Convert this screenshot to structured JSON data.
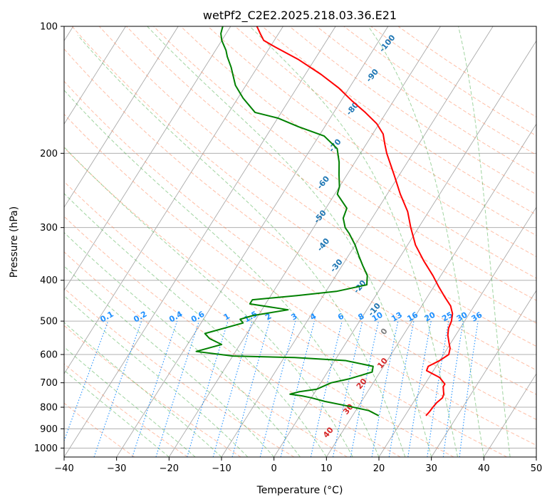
{
  "chart_data": {
    "type": "line",
    "title": "wetPf2_C2E2.2025.218.03.36.E21",
    "xlabel": "Temperature (°C)",
    "ylabel": "Pressure (hPa)",
    "xlim": [
      -40,
      50
    ],
    "ylim": [
      1050,
      100
    ],
    "y_scale": "log",
    "skew_t": true,
    "x_ticks": [
      -40,
      -30,
      -20,
      -10,
      0,
      10,
      20,
      30,
      40,
      50
    ],
    "y_ticks": [
      100,
      200,
      300,
      400,
      500,
      600,
      700,
      800,
      900,
      1000
    ],
    "grid": true,
    "colors": {
      "temperature": "#ff0000",
      "dewpoint": "#008000",
      "isotherm_label": "#1f77b4",
      "dry_adiabat": "#ff7f50",
      "moist_adiabat": "#2ca02c",
      "mixing_ratio": "#1e90ff",
      "saturation_label": "#d62728",
      "freezing_label": "#808080"
    },
    "isotherm_labels": [
      "-100",
      "-90",
      "-80",
      "-70",
      "-60",
      "-50",
      "-40",
      "-30",
      "-20",
      "-10",
      "0",
      "10",
      "20",
      "30",
      "40"
    ],
    "mixing_ratio_labels": [
      "0.1",
      "0.2",
      "0.4",
      "0.6",
      "1",
      "1.5",
      "2",
      "3",
      "4",
      "6",
      "8",
      "10",
      "13",
      "16",
      "20",
      "25",
      "30",
      "36"
    ],
    "series": [
      {
        "key": "temperature",
        "points": [
          [
            24,
            838
          ],
          [
            24.2,
            820
          ],
          [
            24.3,
            800
          ],
          [
            24.5,
            780
          ],
          [
            25,
            760
          ],
          [
            24.8,
            745
          ],
          [
            24.3,
            730
          ],
          [
            23.8,
            715
          ],
          [
            23.8,
            705
          ],
          [
            22,
            680
          ],
          [
            18.7,
            655
          ],
          [
            18.5,
            640
          ],
          [
            20,
            620
          ],
          [
            21,
            600
          ],
          [
            20.5,
            580
          ],
          [
            19.5,
            560
          ],
          [
            18.5,
            540
          ],
          [
            17.8,
            520
          ],
          [
            17.5,
            500
          ],
          [
            16.8,
            480
          ],
          [
            15.5,
            460
          ],
          [
            13.5,
            440
          ],
          [
            11,
            415
          ],
          [
            8.5,
            390
          ],
          [
            5,
            360
          ],
          [
            1.5,
            330
          ],
          [
            -1.5,
            300
          ],
          [
            -4,
            275
          ],
          [
            -7.5,
            250
          ],
          [
            -11,
            225
          ],
          [
            -15,
            200
          ],
          [
            -16.5,
            190
          ],
          [
            -18,
            180
          ],
          [
            -20.5,
            170
          ],
          [
            -24,
            160
          ],
          [
            -28,
            150
          ],
          [
            -32,
            140
          ],
          [
            -37,
            130
          ],
          [
            -43,
            120
          ],
          [
            -49,
            112
          ],
          [
            -52,
            108
          ],
          [
            -53.5,
            104
          ],
          [
            -55,
            100
          ]
        ]
      },
      {
        "key": "dewpoint",
        "points": [
          [
            15,
            838
          ],
          [
            12.5,
            815
          ],
          [
            8,
            795
          ],
          [
            3,
            775
          ],
          [
            0,
            760
          ],
          [
            -2,
            752
          ],
          [
            -4.5,
            745
          ],
          [
            -3,
            735
          ],
          [
            0,
            725
          ],
          [
            2,
            700
          ],
          [
            5,
            685
          ],
          [
            8.5,
            660
          ],
          [
            8,
            640
          ],
          [
            2,
            620
          ],
          [
            -8,
            610
          ],
          [
            -20,
            605
          ],
          [
            -27.5,
            590
          ],
          [
            -23.5,
            568
          ],
          [
            -26.5,
            550
          ],
          [
            -28,
            535
          ],
          [
            -22,
            505
          ],
          [
            -23,
            495
          ],
          [
            -21,
            485
          ],
          [
            -15,
            470
          ],
          [
            -23,
            455
          ],
          [
            -23,
            445
          ],
          [
            -15,
            435
          ],
          [
            -8,
            425
          ],
          [
            -3,
            410
          ],
          [
            -3.5,
            400
          ],
          [
            -4,
            390
          ],
          [
            -6,
            370
          ],
          [
            -8,
            350
          ],
          [
            -10,
            330
          ],
          [
            -12.5,
            310
          ],
          [
            -14,
            300
          ],
          [
            -15.5,
            285
          ],
          [
            -16,
            270
          ],
          [
            -19.5,
            250
          ],
          [
            -20,
            240
          ],
          [
            -21.5,
            225
          ],
          [
            -23,
            210
          ],
          [
            -25,
            195
          ],
          [
            -29,
            182
          ],
          [
            -35,
            173
          ],
          [
            -40,
            165
          ],
          [
            -45,
            160
          ],
          [
            -49,
            148
          ],
          [
            -52,
            138
          ],
          [
            -55,
            125
          ],
          [
            -57,
            118
          ],
          [
            -58,
            114
          ],
          [
            -60,
            108
          ],
          [
            -61,
            104
          ],
          [
            -61.5,
            100
          ]
        ]
      }
    ]
  }
}
